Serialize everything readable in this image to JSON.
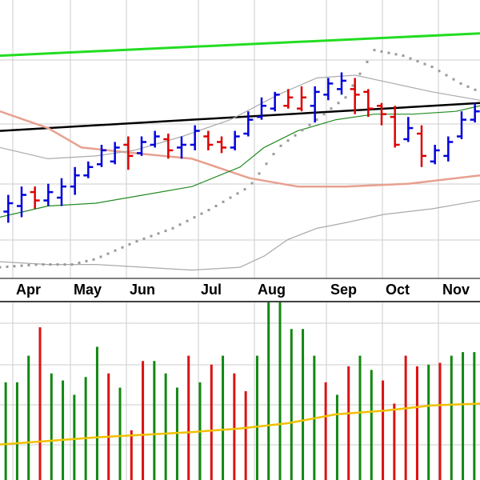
{
  "chart_data": [
    {
      "type": "bar",
      "subtype": "weekly-ohlc-price",
      "x_tick_labels": [
        "Apr",
        "May",
        "Jun",
        "Jul",
        "Aug",
        "Sep",
        "Oct",
        "Nov"
      ],
      "y_range": [
        0,
        100
      ],
      "grid": true,
      "colors": {
        "up": "#0000dd",
        "down": "#dd0000"
      },
      "bars": [
        {
          "h": 30,
          "l": 20,
          "o": 24,
          "c": 27,
          "up": true
        },
        {
          "h": 33,
          "l": 22,
          "o": 26,
          "c": 30,
          "up": true
        },
        {
          "h": 33,
          "l": 25,
          "o": 31,
          "c": 28,
          "up": false
        },
        {
          "h": 34,
          "l": 26,
          "o": 28,
          "c": 31,
          "up": true
        },
        {
          "h": 36,
          "l": 26,
          "o": 29,
          "c": 33,
          "up": true
        },
        {
          "h": 40,
          "l": 30,
          "o": 33,
          "c": 37,
          "up": true
        },
        {
          "h": 42,
          "l": 36,
          "o": 37,
          "c": 40,
          "up": true
        },
        {
          "h": 48,
          "l": 40,
          "o": 41,
          "c": 46,
          "up": true
        },
        {
          "h": 49,
          "l": 41,
          "o": 42,
          "c": 47,
          "up": true
        },
        {
          "h": 51,
          "l": 39,
          "o": 48,
          "c": 44,
          "up": false
        },
        {
          "h": 51,
          "l": 44,
          "o": 45,
          "c": 49,
          "up": true
        },
        {
          "h": 53,
          "l": 47,
          "o": 48,
          "c": 51,
          "up": true
        },
        {
          "h": 52,
          "l": 43,
          "o": 50,
          "c": 46,
          "up": false
        },
        {
          "h": 51,
          "l": 43,
          "o": 47,
          "c": 48,
          "up": true
        },
        {
          "h": 55,
          "l": 46,
          "o": 48,
          "c": 53,
          "up": true
        },
        {
          "h": 53,
          "l": 46,
          "o": 51,
          "c": 48,
          "up": false
        },
        {
          "h": 51,
          "l": 45,
          "o": 49,
          "c": 47,
          "up": false
        },
        {
          "h": 53,
          "l": 46,
          "o": 47,
          "c": 51,
          "up": true
        },
        {
          "h": 60,
          "l": 51,
          "o": 52,
          "c": 57,
          "up": true
        },
        {
          "h": 65,
          "l": 57,
          "o": 58,
          "c": 62,
          "up": true
        },
        {
          "h": 67,
          "l": 60,
          "o": 61,
          "c": 66,
          "up": true
        },
        {
          "h": 68,
          "l": 61,
          "o": 62,
          "c": 65,
          "up": false
        },
        {
          "h": 69,
          "l": 60,
          "o": 61,
          "c": 65,
          "up": false
        },
        {
          "h": 69,
          "l": 56,
          "o": 62,
          "c": 67,
          "up": true
        },
        {
          "h": 72,
          "l": 64,
          "o": 66,
          "c": 70,
          "up": true
        },
        {
          "h": 74,
          "l": 66,
          "o": 68,
          "c": 71,
          "up": true
        },
        {
          "h": 72,
          "l": 59,
          "o": 68,
          "c": 66,
          "up": false
        },
        {
          "h": 68,
          "l": 58,
          "o": 67,
          "c": 61,
          "up": false
        },
        {
          "h": 63,
          "l": 55,
          "o": 62,
          "c": 59,
          "up": false
        },
        {
          "h": 62,
          "l": 47,
          "o": 58,
          "c": 48,
          "up": false
        },
        {
          "h": 58,
          "l": 49,
          "o": 50,
          "c": 54,
          "up": true
        },
        {
          "h": 55,
          "l": 40,
          "o": 52,
          "c": 44,
          "up": false
        },
        {
          "h": 48,
          "l": 41,
          "o": 42,
          "c": 46,
          "up": true
        },
        {
          "h": 51,
          "l": 42,
          "o": 44,
          "c": 49,
          "up": true
        },
        {
          "h": 60,
          "l": 50,
          "o": 51,
          "c": 57,
          "up": true
        },
        {
          "h": 63,
          "l": 56,
          "o": 57,
          "c": 60,
          "up": true
        }
      ],
      "lines": [
        {
          "name": "",
          "color": "#22dd22",
          "width": 3,
          "x": [
            0,
            100
          ],
          "y": [
            80,
            88
          ]
        },
        {
          "name": "",
          "color": "#000000",
          "width": 2.5,
          "x": [
            0,
            100
          ],
          "y": [
            53,
            63
          ]
        },
        {
          "name": "",
          "color": "#e8a090",
          "width": 2.5,
          "x": [
            0,
            10,
            17,
            28,
            40,
            52,
            62,
            72,
            85,
            100
          ],
          "y": [
            60,
            54,
            47,
            45,
            43,
            36,
            33,
            33,
            34,
            37
          ]
        },
        {
          "name": "",
          "color": "#228b22",
          "width": 1.2,
          "x": [
            0,
            10,
            20,
            30,
            40,
            50,
            55,
            62,
            70,
            78,
            86,
            95,
            100
          ],
          "y": [
            22,
            26,
            27,
            30,
            33,
            40,
            47,
            53,
            57,
            59,
            59,
            60,
            62
          ]
        },
        {
          "name": "",
          "color": "#aaaaaa",
          "width": 1.2,
          "x": [
            0,
            10,
            20,
            28,
            38,
            48,
            58,
            66,
            74,
            82,
            90,
            100
          ],
          "y": [
            47,
            43,
            44,
            46,
            51,
            57,
            66,
            72,
            73,
            70,
            67,
            64
          ]
        },
        {
          "name": "",
          "color": "#aaaaaa",
          "width": 1.2,
          "x": [
            0,
            10,
            20,
            30,
            40,
            50,
            55,
            60,
            66,
            72,
            80,
            90,
            100
          ],
          "y": [
            6,
            5,
            5,
            4,
            3,
            4,
            8,
            14,
            18,
            20,
            23,
            25,
            28
          ]
        }
      ],
      "dots": {
        "color": "#999999",
        "x": [
          0,
          8,
          15,
          20,
          28,
          36,
          44,
          52,
          58,
          66,
          72,
          78,
          84,
          90,
          96,
          100
        ],
        "y": [
          4,
          5,
          5,
          7,
          13,
          18,
          25,
          33,
          47,
          57,
          65,
          82,
          80,
          76,
          70,
          67
        ]
      }
    },
    {
      "type": "bar",
      "subtype": "weekly-volume",
      "y_range": [
        0,
        100
      ],
      "grid": true,
      "colors": {
        "up": "#118811",
        "down": "#dd1111",
        "average": "#f0c000"
      },
      "values": [
        55,
        55,
        70,
        86,
        60,
        56,
        48,
        58,
        75,
        60,
        52,
        28,
        67,
        67,
        60,
        52,
        70,
        55,
        65,
        70,
        60,
        50,
        70,
        100,
        100,
        85,
        85,
        70,
        55,
        48,
        64,
        70,
        62,
        56,
        43,
        70,
        64,
        65,
        66,
        70,
        72,
        72
      ],
      "up": [
        true,
        true,
        true,
        false,
        true,
        true,
        true,
        true,
        true,
        false,
        true,
        false,
        false,
        true,
        true,
        true,
        false,
        true,
        false,
        true,
        false,
        false,
        true,
        true,
        true,
        true,
        true,
        true,
        false,
        true,
        false,
        true,
        true,
        false,
        false,
        false,
        false,
        true,
        false,
        true,
        true,
        true
      ],
      "average": {
        "x": [
          0,
          20,
          40,
          50,
          60,
          70,
          80,
          90,
          100
        ],
        "y": [
          20,
          24,
          27,
          29,
          32,
          37,
          39,
          42,
          43
        ]
      }
    }
  ]
}
